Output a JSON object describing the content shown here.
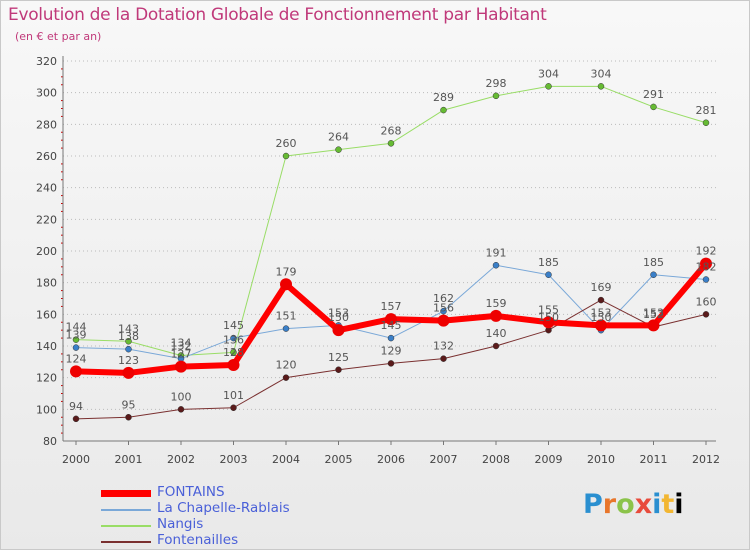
{
  "header": {
    "title": "Evolution de la Dotation Globale de Fonctionnement par Habitant",
    "subtitle": "(en € et par an)"
  },
  "logo": {
    "text": "Proxiti"
  },
  "chart_data": {
    "type": "line",
    "title": "Evolution de la Dotation Globale de Fonctionnement par Habitant",
    "subtitle": "(en € et par an)",
    "xlabel": "",
    "ylabel": "",
    "ylim": [
      80,
      320
    ],
    "yticks": [
      80,
      100,
      120,
      140,
      160,
      180,
      200,
      220,
      240,
      260,
      280,
      300,
      320
    ],
    "grid": "horizontal dotted",
    "legend_position": "bottom-left",
    "x": [
      "2000",
      "2001",
      "2002",
      "2003",
      "2004",
      "2005",
      "2006",
      "2007",
      "2008",
      "2009",
      "2010",
      "2011",
      "2012"
    ],
    "series": [
      {
        "name": "Nangis",
        "color": "#99dd66",
        "marker": "#66bb33",
        "width": 1,
        "values": [
          144,
          143,
          134,
          136,
          260,
          264,
          268,
          289,
          298,
          304,
          304,
          291,
          281
        ],
        "labels": [
          "144",
          "143",
          "134",
          "136",
          "260",
          "264",
          "268",
          "289",
          "298",
          "304",
          "304",
          "291",
          "281"
        ]
      },
      {
        "name": "La Chapelle-Rablais",
        "color": "#7aa8d8",
        "marker": "#3a7fc8",
        "width": 1,
        "values": [
          139,
          138,
          132,
          145,
          151,
          153,
          145,
          162,
          191,
          185,
          150,
          185,
          182
        ],
        "labels": [
          "139",
          "138",
          "132",
          "145",
          "151",
          "153",
          "145",
          "162",
          "191",
          "185",
          "150",
          "185",
          "182"
        ]
      },
      {
        "name": "Fontenailles",
        "color": "#7a3030",
        "marker": "#5a1a1a",
        "width": 1,
        "values": [
          94,
          95,
          100,
          101,
          120,
          125,
          129,
          132,
          140,
          150,
          169,
          152,
          160
        ],
        "labels": [
          "94",
          "95",
          "100",
          "101",
          "120",
          "125",
          "129",
          "132",
          "140",
          "150",
          "169",
          "152",
          "160"
        ]
      },
      {
        "name": "FONTAINS",
        "color": "#ff0000",
        "marker": "#ee0000",
        "width": 6,
        "values": [
          124,
          123,
          127,
          128,
          179,
          150,
          157,
          156,
          159,
          155,
          153,
          153,
          192
        ],
        "labels": [
          "124",
          "123",
          "127",
          "128",
          "179",
          "150",
          "157",
          "156",
          "159",
          "155",
          "153",
          "153",
          "192"
        ]
      }
    ],
    "legend_order": [
      "FONTAINS",
      "La Chapelle-Rablais",
      "Nangis",
      "Fontenailles"
    ]
  }
}
